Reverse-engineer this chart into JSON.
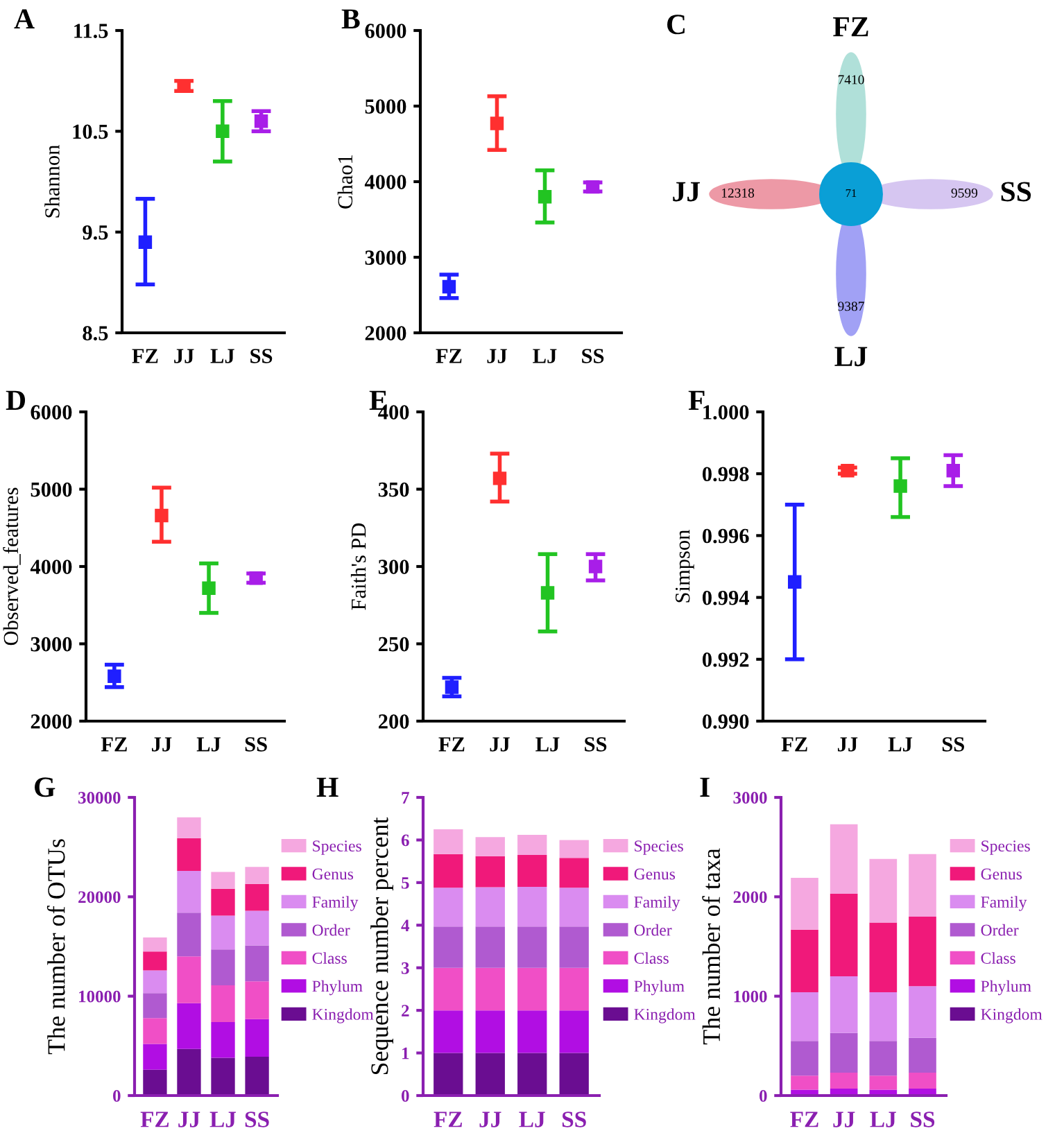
{
  "chart_data": [
    {
      "type": "scatter",
      "title": "A",
      "ylabel": "Shannon",
      "categories": [
        "FZ",
        "JJ",
        "LJ",
        "SS"
      ],
      "marker": "square",
      "values": [
        9.4,
        10.95,
        10.5,
        10.6
      ],
      "errors": [
        [
          8.98,
          9.83
        ],
        [
          10.9,
          11.0
        ],
        [
          10.2,
          10.8
        ],
        [
          10.5,
          10.7
        ]
      ],
      "colors": [
        "#1f1fff",
        "#ff3030",
        "#22c422",
        "#a81ee8"
      ],
      "ylim": [
        8.5,
        11.5
      ],
      "yticks": [
        8.5,
        9.5,
        10.5,
        11.5
      ]
    },
    {
      "type": "scatter",
      "title": "B",
      "ylabel": "Chao1",
      "categories": [
        "FZ",
        "JJ",
        "LJ",
        "SS"
      ],
      "marker": "square",
      "values": [
        2610,
        4770,
        3800,
        3930
      ],
      "errors": [
        [
          2460,
          2770
        ],
        [
          4420,
          5130
        ],
        [
          3460,
          4150
        ],
        [
          3870,
          3990
        ]
      ],
      "colors": [
        "#1f1fff",
        "#ff3030",
        "#22c422",
        "#a81ee8"
      ],
      "ylim": [
        2000,
        6000
      ],
      "yticks": [
        2000,
        3000,
        4000,
        5000,
        6000
      ]
    },
    {
      "type": "other",
      "title": "C",
      "categories": [
        "FZ",
        "JJ",
        "LJ",
        "SS"
      ],
      "values": [
        7410,
        12318,
        9387,
        9599
      ],
      "data_labels": true,
      "colors": [
        "#a8ddd5",
        "#ec8f9d",
        "#9797f5",
        "#d2c0f0"
      ],
      "annotations": [
        "71"
      ]
    },
    {
      "type": "scatter",
      "title": "D",
      "ylabel": "Observed_features",
      "categories": [
        "FZ",
        "JJ",
        "LJ",
        "SS"
      ],
      "marker": "square",
      "values": [
        2580,
        4660,
        3720,
        3850
      ],
      "errors": [
        [
          2440,
          2730
        ],
        [
          4320,
          5020
        ],
        [
          3400,
          4040
        ],
        [
          3790,
          3910
        ]
      ],
      "colors": [
        "#1f1fff",
        "#ff3030",
        "#22c422",
        "#a81ee8"
      ],
      "ylim": [
        2000,
        6000
      ],
      "yticks": [
        2000,
        3000,
        4000,
        5000,
        6000
      ]
    },
    {
      "type": "scatter",
      "title": "E",
      "ylabel": "Faith's PD",
      "categories": [
        "FZ",
        "JJ",
        "LJ",
        "SS"
      ],
      "marker": "square",
      "values": [
        222,
        357,
        283,
        300
      ],
      "errors": [
        [
          216,
          228
        ],
        [
          342,
          373
        ],
        [
          258,
          308
        ],
        [
          291,
          308
        ]
      ],
      "colors": [
        "#1f1fff",
        "#ff3030",
        "#22c422",
        "#a81ee8"
      ],
      "ylim": [
        200,
        400
      ],
      "yticks": [
        200,
        250,
        300,
        350,
        400
      ]
    },
    {
      "type": "scatter",
      "title": "F",
      "ylabel": "Simpson",
      "categories": [
        "FZ",
        "JJ",
        "LJ",
        "SS"
      ],
      "marker": "square",
      "values": [
        0.9945,
        0.9981,
        0.9976,
        0.9981
      ],
      "errors": [
        [
          0.992,
          0.997
        ],
        [
          0.998,
          0.9982
        ],
        [
          0.9966,
          0.9985
        ],
        [
          0.9976,
          0.9986
        ]
      ],
      "colors": [
        "#1f1fff",
        "#ff3030",
        "#22c422",
        "#a81ee8"
      ],
      "ylim": [
        0.99,
        1.0
      ],
      "yticks": [
        {
          "value": 0.99,
          "label": "0.990"
        },
        {
          "value": 0.992,
          "label": "0.992"
        },
        {
          "value": 0.994,
          "label": "0.994"
        },
        {
          "value": 0.996,
          "label": "0.996"
        },
        {
          "value": 0.998,
          "label": "0.998"
        },
        {
          "value": 1.0,
          "label": "1.000"
        }
      ]
    },
    {
      "type": "bar",
      "title": "G",
      "ylabel": "The number of OTUs",
      "categories": [
        "FZ",
        "JJ",
        "LJ",
        "SS"
      ],
      "stacked": true,
      "legend": "right",
      "ylim": [
        0,
        30000
      ],
      "yticks": [
        0,
        10000,
        20000,
        30000
      ],
      "series": [
        {
          "name": "Kingdom",
          "color": "#6a0d91",
          "values": [
            2600,
            4700,
            3800,
            3900
          ]
        },
        {
          "name": "Phylum",
          "color": "#b10ee3",
          "values": [
            2600,
            4600,
            3600,
            3800
          ]
        },
        {
          "name": "Class",
          "color": "#f04fc6",
          "values": [
            2600,
            4700,
            3700,
            3800
          ]
        },
        {
          "name": "Order",
          "color": "#b05ad0",
          "values": [
            2500,
            4400,
            3600,
            3600
          ]
        },
        {
          "name": "Family",
          "color": "#da8cf0",
          "values": [
            2300,
            4200,
            3400,
            3500
          ]
        },
        {
          "name": "Genus",
          "color": "#f0197a",
          "values": [
            1900,
            3300,
            2700,
            2700
          ]
        },
        {
          "name": "Species",
          "color": "#f5a8e0",
          "values": [
            1400,
            2100,
            1700,
            1700
          ]
        }
      ]
    },
    {
      "type": "bar",
      "title": "H",
      "ylabel": "Sequence number percent",
      "categories": [
        "FZ",
        "JJ",
        "LJ",
        "SS"
      ],
      "stacked": true,
      "legend": "right",
      "ylim": [
        0,
        7
      ],
      "yticks": [
        0,
        1,
        2,
        3,
        4,
        5,
        6,
        7
      ],
      "series": [
        {
          "name": "Kingdom",
          "color": "#6a0d91",
          "values": [
            1,
            1,
            1,
            1
          ]
        },
        {
          "name": "Phylum",
          "color": "#b10ee3",
          "values": [
            1,
            1,
            1,
            1
          ]
        },
        {
          "name": "Class",
          "color": "#f04fc6",
          "values": [
            1,
            1,
            1,
            1
          ]
        },
        {
          "name": "Order",
          "color": "#b05ad0",
          "values": [
            0.97,
            0.97,
            0.97,
            0.97
          ]
        },
        {
          "name": "Family",
          "color": "#da8cf0",
          "values": [
            0.91,
            0.92,
            0.93,
            0.91
          ]
        },
        {
          "name": "Genus",
          "color": "#f0197a",
          "values": [
            0.79,
            0.73,
            0.75,
            0.7
          ]
        },
        {
          "name": "Species",
          "color": "#f5a8e0",
          "values": [
            0.58,
            0.45,
            0.47,
            0.42
          ]
        }
      ]
    },
    {
      "type": "bar",
      "title": "I",
      "ylabel": "The number of taxa",
      "categories": [
        "FZ",
        "JJ",
        "LJ",
        "SS"
      ],
      "stacked": true,
      "legend": "right",
      "ylim": [
        0,
        3000
      ],
      "yticks": [
        0,
        1000,
        2000,
        3000
      ],
      "series": [
        {
          "name": "Kingdom",
          "color": "#6a0d91",
          "values": [
            0,
            0,
            0,
            0
          ]
        },
        {
          "name": "Phylum",
          "color": "#b10ee3",
          "values": [
            60,
            70,
            60,
            70
          ]
        },
        {
          "name": "Class",
          "color": "#f04fc6",
          "values": [
            140,
            160,
            140,
            160
          ]
        },
        {
          "name": "Order",
          "color": "#b05ad0",
          "values": [
            350,
            400,
            350,
            350
          ]
        },
        {
          "name": "Family",
          "color": "#da8cf0",
          "values": [
            490,
            570,
            490,
            520
          ]
        },
        {
          "name": "Genus",
          "color": "#f0197a",
          "values": [
            630,
            830,
            700,
            700
          ]
        },
        {
          "name": "Species",
          "color": "#f5a8e0",
          "values": [
            520,
            700,
            640,
            630
          ]
        }
      ]
    }
  ]
}
